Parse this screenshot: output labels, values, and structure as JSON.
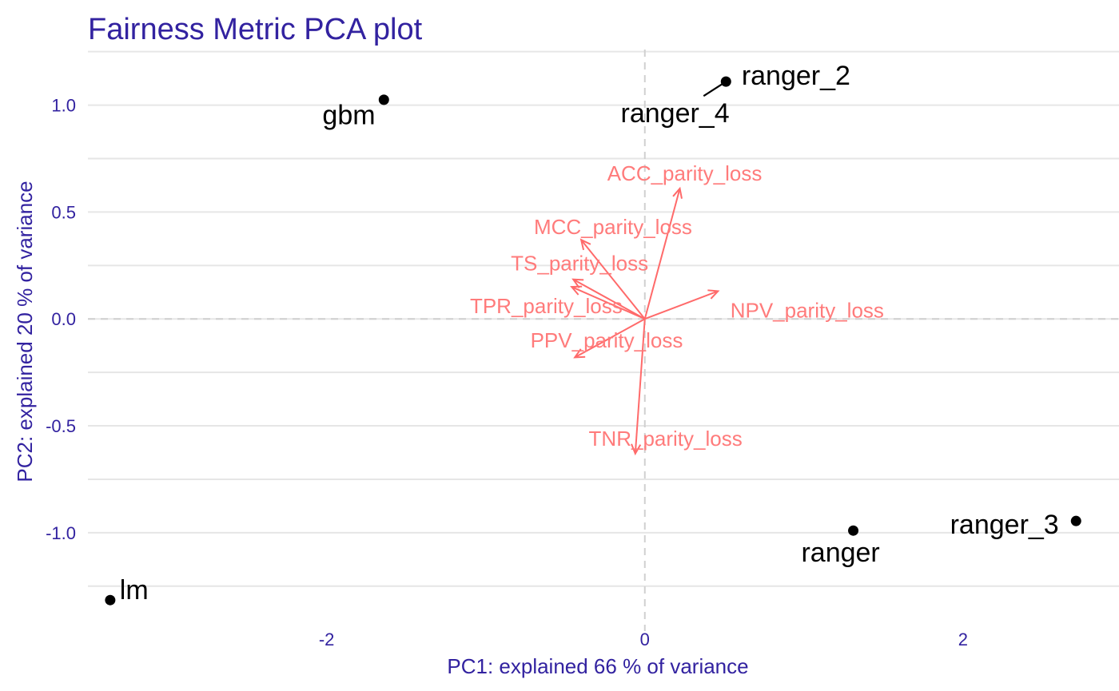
{
  "colors": {
    "title": "#3222a0",
    "axis_text": "#3222a0",
    "grid": "#e6e6e6",
    "zero_line": "#d0d0d0",
    "arrow": "#ff6a6a",
    "arrow_label": "#ff7b7b",
    "point": "#000000",
    "point_label": "#000000",
    "background": "#ffffff"
  },
  "chart_data": {
    "type": "scatter",
    "title": "Fairness Metric PCA plot",
    "xlabel": "PC1: explained 66 % of variance",
    "ylabel": "PC2: explained 20 % of variance",
    "xlim": [
      -3.5,
      2.98
    ],
    "ylim": [
      -1.46,
      1.26
    ],
    "x_ticks": [
      {
        "value": -2,
        "label": "-2"
      },
      {
        "value": 0,
        "label": "0"
      },
      {
        "value": 2,
        "label": "2"
      }
    ],
    "y_ticks": [
      {
        "value": 1.0,
        "label": "1.0"
      },
      {
        "value": 0.5,
        "label": "0.5"
      },
      {
        "value": 0.0,
        "label": "0.0"
      },
      {
        "value": -0.5,
        "label": "-0.5"
      },
      {
        "value": -1.0,
        "label": "-1.0"
      }
    ],
    "y_minor_gridlines": [
      1.25,
      0.75,
      0.25,
      -0.25,
      -0.75,
      -1.25
    ],
    "grid": true,
    "zero_lines": "dashed",
    "points": [
      {
        "label": "gbm",
        "x": -1.64,
        "y": 1.025,
        "label_dx": -0.22,
        "label_dy": -0.07
      },
      {
        "label": "ranger_2",
        "x": 0.51,
        "y": 1.11,
        "label_dx": 0.44,
        "label_dy": 0.03
      },
      {
        "label": "ranger_4",
        "x": 0.51,
        "y": 1.11,
        "label_dx": -0.32,
        "label_dy": -0.145,
        "connector": true
      },
      {
        "label": "ranger",
        "x": 1.31,
        "y": -0.99,
        "label_dx": -0.08,
        "label_dy": -0.1
      },
      {
        "label": "ranger_3",
        "x": 2.71,
        "y": -0.945,
        "label_dx": -0.45,
        "label_dy": -0.015
      },
      {
        "label": "lm",
        "x": -3.36,
        "y": -1.315,
        "label_dx": 0.15,
        "label_dy": 0.05
      }
    ],
    "loadings": [
      {
        "label": "ACC_parity_loss",
        "x": 0.22,
        "y": 0.61,
        "label_x": 0.25,
        "label_y": 0.68
      },
      {
        "label": "MCC_parity_loss",
        "x": -0.4,
        "y": 0.37,
        "label_x": -0.2,
        "label_y": 0.43
      },
      {
        "label": "TS_parity_loss",
        "x": -0.45,
        "y": 0.185,
        "label_x": -0.41,
        "label_y": 0.26
      },
      {
        "label": "TPR_parity_loss",
        "x": -0.46,
        "y": 0.15,
        "label_x": -0.62,
        "label_y": 0.06
      },
      {
        "label": "NPV_parity_loss",
        "x": 0.46,
        "y": 0.13,
        "label_x": 1.02,
        "label_y": 0.04
      },
      {
        "label": "PPV_parity_loss",
        "x": -0.44,
        "y": -0.18,
        "label_x": -0.24,
        "label_y": -0.1
      },
      {
        "label": "TNR_parity_loss",
        "x": -0.06,
        "y": -0.63,
        "label_x": 0.13,
        "label_y": -0.56
      }
    ]
  }
}
